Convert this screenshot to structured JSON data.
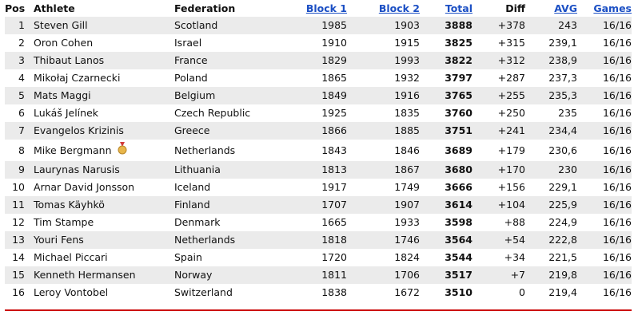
{
  "table": {
    "header": [
      "Pos",
      "Athlete",
      "Federation",
      "Block 1",
      "Block 2",
      "Total",
      "Diff",
      "AVG",
      "Games"
    ],
    "rows": [
      [
        "1",
        "Steven Gill",
        "Scotland",
        "1985",
        "1903",
        "3888",
        "+378",
        "243",
        "16/16"
      ],
      [
        "2",
        "Oron Cohen",
        "Israel",
        "1910",
        "1915",
        "3825",
        "+315",
        "239,1",
        "16/16"
      ],
      [
        "3",
        "Thibaut Lanos",
        "France",
        "1829",
        "1993",
        "3822",
        "+312",
        "238,9",
        "16/16"
      ],
      [
        "4",
        "Mikołaj Czarnecki",
        "Poland",
        "1865",
        "1932",
        "3797",
        "+287",
        "237,3",
        "16/16"
      ],
      [
        "5",
        "Mats Maggi",
        "Belgium",
        "1849",
        "1916",
        "3765",
        "+255",
        "235,3",
        "16/16"
      ],
      [
        "6",
        "Lukáš Jelínek",
        "Czech Republic",
        "1925",
        "1835",
        "3760",
        "+250",
        "235",
        "16/16"
      ],
      [
        "7",
        "Evangelos Krizinis",
        "Greece",
        "1866",
        "1885",
        "3751",
        "+241",
        "234,4",
        "16/16"
      ],
      [
        "8",
        "Mike Bergmann",
        "Netherlands",
        "1843",
        "1846",
        "3689",
        "+179",
        "230,6",
        "16/16"
      ],
      [
        "9",
        "Laurynas Narusis",
        "Lithuania",
        "1813",
        "1867",
        "3680",
        "+170",
        "230",
        "16/16"
      ],
      [
        "10",
        "Arnar David Jonsson",
        "Iceland",
        "1917",
        "1749",
        "3666",
        "+156",
        "229,1",
        "16/16"
      ],
      [
        "11",
        "Tomas Käyhkö",
        "Finland",
        "1707",
        "1907",
        "3614",
        "+104",
        "225,9",
        "16/16"
      ],
      [
        "12",
        "Tim Stampe",
        "Denmark",
        "1665",
        "1933",
        "3598",
        "+88",
        "224,9",
        "16/16"
      ],
      [
        "13",
        "Youri Fens",
        "Netherlands",
        "1818",
        "1746",
        "3564",
        "+54",
        "222,8",
        "16/16"
      ],
      [
        "14",
        "Michael Piccari",
        "Spain",
        "1720",
        "1824",
        "3544",
        "+34",
        "221,5",
        "16/16"
      ],
      [
        "15",
        "Kenneth Hermansen",
        "Norway",
        "1811",
        "1706",
        "3517",
        "+7",
        "219,8",
        "16/16"
      ],
      [
        "16",
        "Leroy Vontobel",
        "Switzerland",
        "1838",
        "1672",
        "3510",
        "0",
        "219,4",
        "16/16"
      ]
    ]
  }
}
